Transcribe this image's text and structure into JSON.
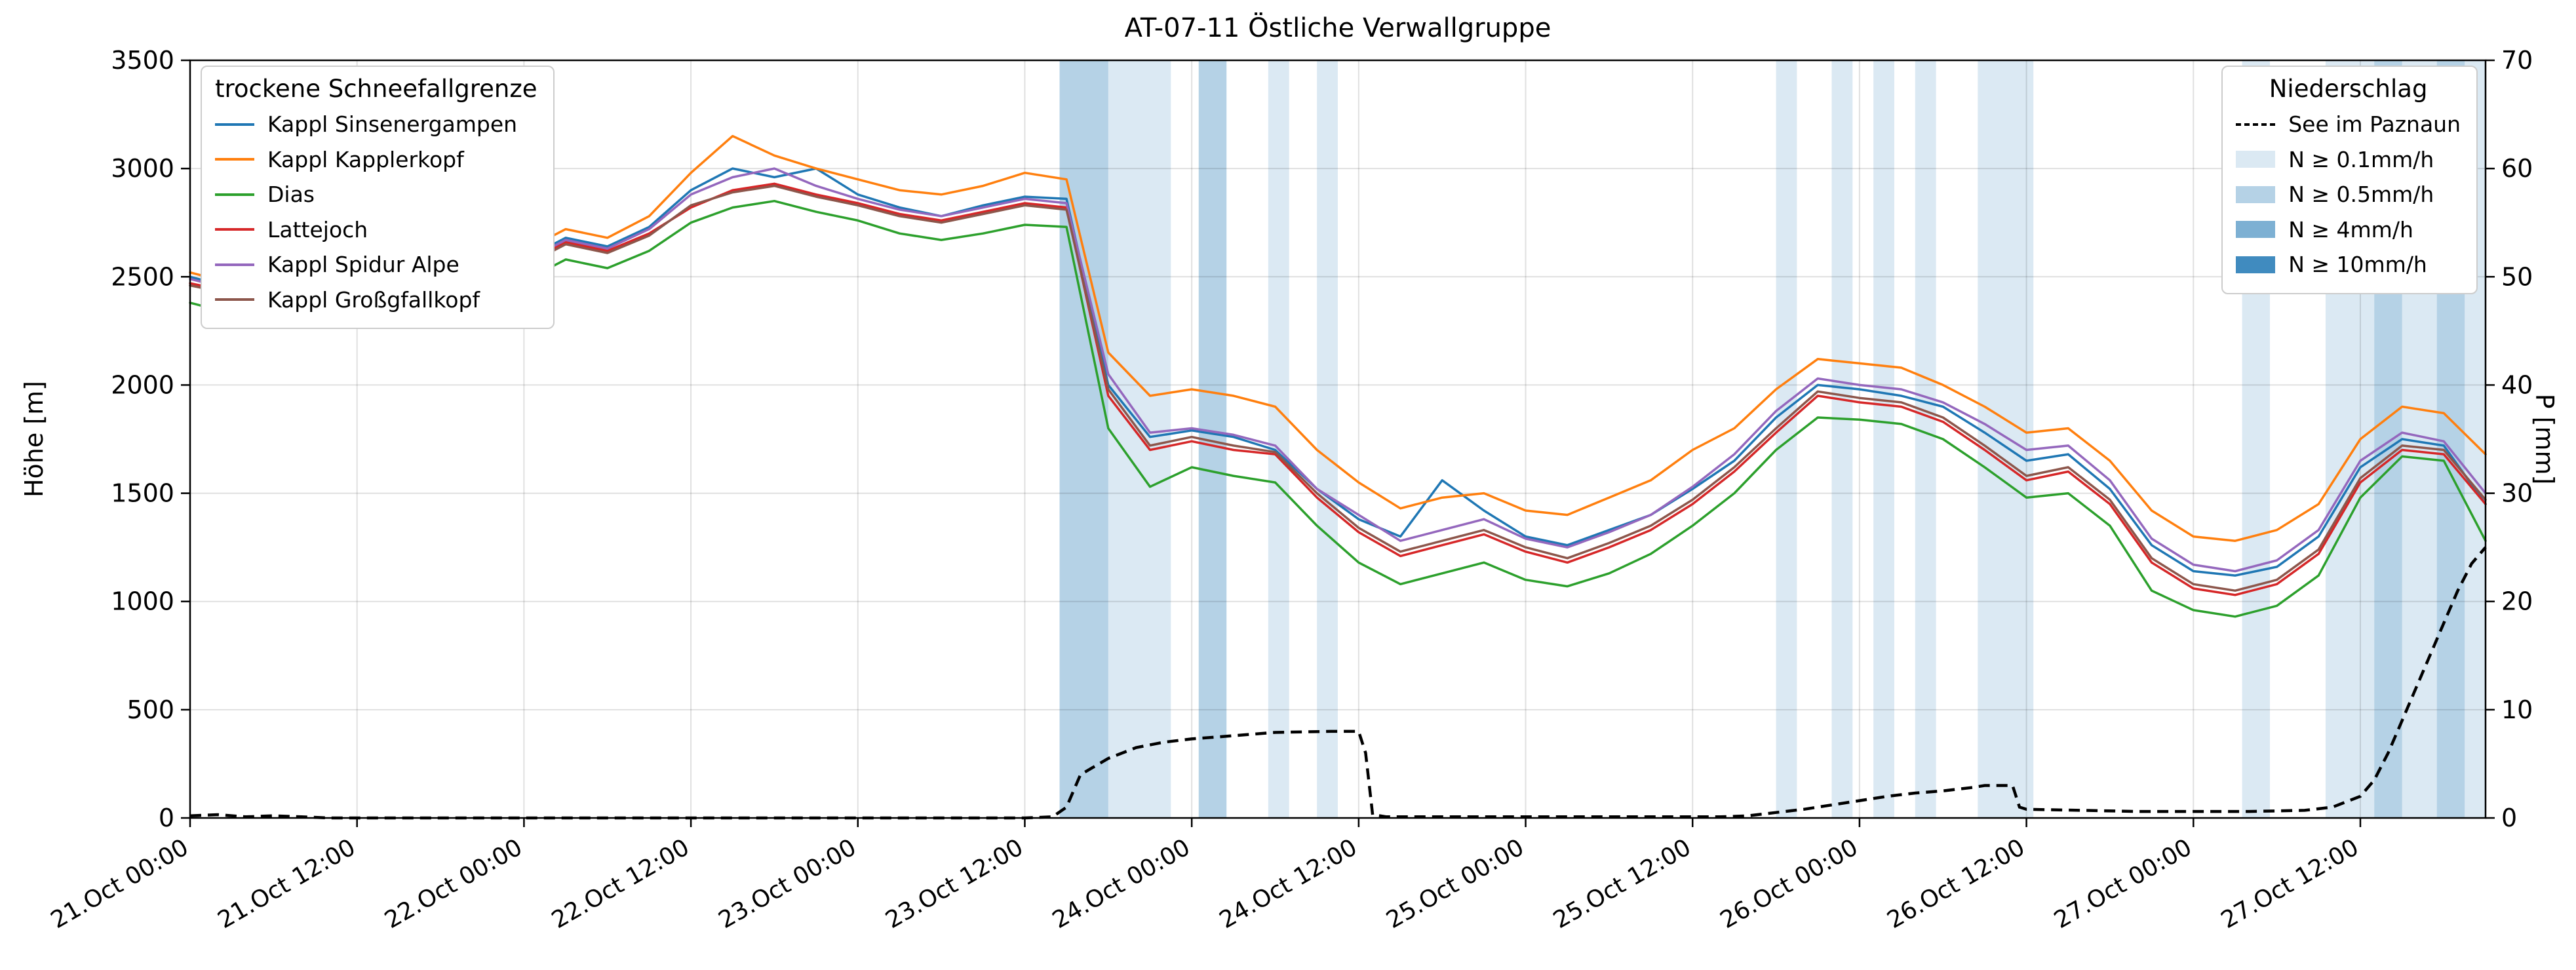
{
  "title": "AT-07-11 Östliche Verwallgruppe",
  "axes": {
    "ylabel_left": "Höhe [m]",
    "ylabel_right": "P [mm]",
    "x_range": [
      0,
      165
    ],
    "y_left_range": [
      0,
      3500
    ],
    "y_right_range": [
      0,
      70
    ],
    "y_left_ticks": [
      0,
      500,
      1000,
      1500,
      2000,
      2500,
      3000,
      3500
    ],
    "y_right_ticks": [
      0,
      10,
      20,
      30,
      40,
      50,
      60,
      70
    ],
    "x_ticks": [
      {
        "t": 0,
        "label": "21.Oct 00:00"
      },
      {
        "t": 12,
        "label": "21.Oct 12:00"
      },
      {
        "t": 24,
        "label": "22.Oct 00:00"
      },
      {
        "t": 36,
        "label": "22.Oct 12:00"
      },
      {
        "t": 48,
        "label": "23.Oct 00:00"
      },
      {
        "t": 60,
        "label": "23.Oct 12:00"
      },
      {
        "t": 72,
        "label": "24.Oct 00:00"
      },
      {
        "t": 84,
        "label": "24.Oct 12:00"
      },
      {
        "t": 96,
        "label": "25.Oct 00:00"
      },
      {
        "t": 108,
        "label": "25.Oct 12:00"
      },
      {
        "t": 120,
        "label": "26.Oct 00:00"
      },
      {
        "t": 132,
        "label": "26.Oct 12:00"
      },
      {
        "t": 144,
        "label": "27.Oct 00:00"
      },
      {
        "t": 156,
        "label": "27.Oct 12:00"
      }
    ]
  },
  "legend_snowline_title": "trockene Schneefallgrenze",
  "legend_precip_title": "Niederschlag",
  "chart_data": {
    "type": "line",
    "x_unit": "hours since 21.Oct 00:00",
    "x_hours": [
      0,
      3,
      6,
      9,
      12,
      15,
      18,
      21,
      24,
      27,
      30,
      33,
      36,
      39,
      42,
      45,
      48,
      51,
      54,
      57,
      60,
      63,
      66,
      69,
      72,
      75,
      78,
      81,
      84,
      87,
      90,
      93,
      96,
      99,
      102,
      105,
      108,
      111,
      114,
      117,
      120,
      123,
      126,
      129,
      132,
      135,
      138,
      141,
      144,
      147,
      150,
      153,
      156,
      159,
      162,
      165
    ],
    "series": [
      {
        "name": "Kappl Sinsenergampen",
        "color": "#1f77b4",
        "values": [
          2500,
          2450,
          2420,
          2400,
          2450,
          2430,
          2480,
          2540,
          2580,
          2680,
          2640,
          2730,
          2900,
          3000,
          2960,
          3000,
          2880,
          2820,
          2780,
          2830,
          2870,
          2860,
          2000,
          1760,
          1790,
          1760,
          1700,
          1520,
          1380,
          1300,
          1560,
          1420,
          1300,
          1260,
          1330,
          1400,
          1520,
          1650,
          1850,
          2000,
          1980,
          1950,
          1900,
          1780,
          1650,
          1680,
          1520,
          1260,
          1140,
          1120,
          1160,
          1300,
          1620,
          1750,
          1720,
          1450
        ]
      },
      {
        "name": "Kappl Kapplerkopf",
        "color": "#ff7f0e",
        "values": [
          2520,
          2470,
          2440,
          2430,
          2470,
          2450,
          2500,
          2560,
          2620,
          2720,
          2680,
          2780,
          2980,
          3150,
          3060,
          3000,
          2950,
          2900,
          2880,
          2920,
          2980,
          2950,
          2150,
          1950,
          1980,
          1950,
          1900,
          1700,
          1550,
          1430,
          1480,
          1500,
          1420,
          1400,
          1480,
          1560,
          1700,
          1800,
          1980,
          2120,
          2100,
          2080,
          2000,
          1900,
          1780,
          1800,
          1650,
          1420,
          1300,
          1280,
          1330,
          1450,
          1750,
          1900,
          1870,
          1680
        ]
      },
      {
        "name": "Dias",
        "color": "#2ca02c",
        "values": [
          2380,
          2330,
          2310,
          2300,
          2340,
          2320,
          2370,
          2430,
          2480,
          2580,
          2540,
          2620,
          2750,
          2820,
          2850,
          2800,
          2760,
          2700,
          2670,
          2700,
          2740,
          2730,
          1800,
          1530,
          1620,
          1580,
          1550,
          1350,
          1180,
          1080,
          1130,
          1180,
          1100,
          1070,
          1130,
          1220,
          1350,
          1500,
          1700,
          1850,
          1840,
          1820,
          1750,
          1620,
          1480,
          1500,
          1350,
          1050,
          960,
          930,
          980,
          1120,
          1480,
          1670,
          1650,
          1280
        ]
      },
      {
        "name": "Lattejoch",
        "color": "#d62728",
        "values": [
          2470,
          2430,
          2400,
          2390,
          2430,
          2400,
          2450,
          2510,
          2560,
          2660,
          2620,
          2700,
          2820,
          2900,
          2930,
          2880,
          2840,
          2790,
          2760,
          2800,
          2840,
          2820,
          1950,
          1700,
          1740,
          1700,
          1680,
          1480,
          1320,
          1210,
          1260,
          1310,
          1230,
          1180,
          1250,
          1330,
          1450,
          1600,
          1780,
          1950,
          1920,
          1900,
          1830,
          1700,
          1560,
          1600,
          1450,
          1180,
          1060,
          1030,
          1080,
          1220,
          1550,
          1700,
          1680,
          1450
        ]
      },
      {
        "name": "Kappl Spidur Alpe",
        "color": "#9467bd",
        "values": [
          2490,
          2440,
          2410,
          2400,
          2440,
          2420,
          2470,
          2530,
          2570,
          2670,
          2630,
          2720,
          2880,
          2960,
          3000,
          2920,
          2860,
          2810,
          2780,
          2820,
          2860,
          2840,
          2050,
          1780,
          1800,
          1770,
          1720,
          1520,
          1400,
          1280,
          1330,
          1380,
          1290,
          1250,
          1320,
          1400,
          1530,
          1680,
          1880,
          2030,
          2000,
          1980,
          1920,
          1820,
          1700,
          1720,
          1560,
          1290,
          1170,
          1140,
          1190,
          1330,
          1650,
          1780,
          1740,
          1500
        ]
      },
      {
        "name": "Kappl Großgfallkopf",
        "color": "#8c564b",
        "values": [
          2460,
          2420,
          2390,
          2380,
          2420,
          2390,
          2440,
          2500,
          2550,
          2650,
          2610,
          2690,
          2830,
          2890,
          2920,
          2870,
          2830,
          2780,
          2750,
          2790,
          2830,
          2810,
          1980,
          1720,
          1760,
          1720,
          1690,
          1500,
          1340,
          1230,
          1280,
          1330,
          1250,
          1200,
          1270,
          1350,
          1470,
          1620,
          1800,
          1970,
          1940,
          1920,
          1850,
          1720,
          1580,
          1620,
          1470,
          1200,
          1080,
          1050,
          1100,
          1240,
          1570,
          1720,
          1700,
          1470
        ]
      }
    ],
    "precipitation_line": {
      "name": "See im Paznaun",
      "style": "dashed",
      "color": "#000000",
      "axis": "right",
      "points": [
        [
          0,
          0.2
        ],
        [
          2,
          0.3
        ],
        [
          4,
          0.1
        ],
        [
          6,
          0.2
        ],
        [
          8,
          0.1
        ],
        [
          10,
          0
        ],
        [
          20,
          0
        ],
        [
          40,
          0
        ],
        [
          60,
          0
        ],
        [
          62,
          0.1
        ],
        [
          63,
          1
        ],
        [
          64,
          4
        ],
        [
          66,
          5.5
        ],
        [
          68,
          6.5
        ],
        [
          70,
          7
        ],
        [
          72,
          7.3
        ],
        [
          75,
          7.6
        ],
        [
          78,
          7.9
        ],
        [
          82,
          8
        ],
        [
          84,
          8
        ],
        [
          84.5,
          6
        ],
        [
          85,
          0.3
        ],
        [
          86,
          0.1
        ],
        [
          95,
          0.1
        ],
        [
          105,
          0.1
        ],
        [
          110,
          0.1
        ],
        [
          112,
          0.2
        ],
        [
          114,
          0.5
        ],
        [
          116,
          0.8
        ],
        [
          118,
          1.2
        ],
        [
          120,
          1.6
        ],
        [
          122,
          2
        ],
        [
          124,
          2.3
        ],
        [
          126,
          2.5
        ],
        [
          128,
          2.8
        ],
        [
          129,
          3
        ],
        [
          131,
          3
        ],
        [
          131.5,
          1
        ],
        [
          132,
          0.8
        ],
        [
          136,
          0.7
        ],
        [
          140,
          0.6
        ],
        [
          144,
          0.6
        ],
        [
          148,
          0.6
        ],
        [
          152,
          0.7
        ],
        [
          154,
          1
        ],
        [
          156,
          2
        ],
        [
          157,
          3.5
        ],
        [
          158,
          6
        ],
        [
          159,
          9
        ],
        [
          160,
          12
        ],
        [
          161,
          15
        ],
        [
          162,
          18
        ],
        [
          163,
          21
        ],
        [
          164,
          23.5
        ],
        [
          165,
          25
        ]
      ]
    },
    "precip_bands": {
      "color_rgb": [
        31,
        119,
        180
      ],
      "levels": [
        {
          "label": "N ≥ 0.1mm/h",
          "alpha": 0.16
        },
        {
          "label": "N ≥ 0.5mm/h",
          "alpha": 0.33
        },
        {
          "label": "N ≥ 4mm/h",
          "alpha": 0.58
        },
        {
          "label": "N ≥ 10mm/h",
          "alpha": 0.85
        }
      ],
      "bands": [
        {
          "start": 62.5,
          "end": 66,
          "level": 2
        },
        {
          "start": 66,
          "end": 70.5,
          "level": 1
        },
        {
          "start": 72.5,
          "end": 74.5,
          "level": 2
        },
        {
          "start": 77.5,
          "end": 79,
          "level": 1
        },
        {
          "start": 81,
          "end": 82.5,
          "level": 1
        },
        {
          "start": 114,
          "end": 115.5,
          "level": 1
        },
        {
          "start": 118,
          "end": 119.5,
          "level": 1
        },
        {
          "start": 121,
          "end": 122.5,
          "level": 1
        },
        {
          "start": 124,
          "end": 125.5,
          "level": 1
        },
        {
          "start": 128.5,
          "end": 132.5,
          "level": 1
        },
        {
          "start": 147.5,
          "end": 149.5,
          "level": 1
        },
        {
          "start": 153.5,
          "end": 157,
          "level": 1
        },
        {
          "start": 157,
          "end": 159,
          "level": 2
        },
        {
          "start": 159,
          "end": 161.5,
          "level": 1
        },
        {
          "start": 161.5,
          "end": 163.5,
          "level": 2
        },
        {
          "start": 163.5,
          "end": 165,
          "level": 1
        }
      ]
    }
  }
}
